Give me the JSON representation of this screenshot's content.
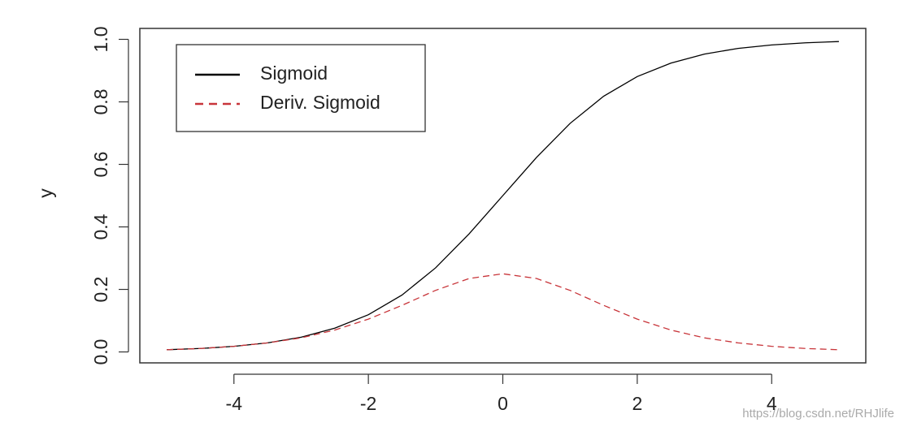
{
  "chart_data": {
    "type": "line",
    "y_label": "y",
    "x": [
      -5,
      -4.5,
      -4,
      -3.5,
      -3,
      -2.5,
      -2,
      -1.5,
      -1,
      -0.5,
      0,
      0.5,
      1,
      1.5,
      2,
      2.5,
      3,
      3.5,
      4,
      4.5,
      5
    ],
    "series": [
      {
        "name": "Sigmoid",
        "color": "#000000",
        "dash": false,
        "values": [
          0.007,
          0.011,
          0.018,
          0.029,
          0.047,
          0.076,
          0.119,
          0.182,
          0.269,
          0.378,
          0.5,
          0.622,
          0.731,
          0.818,
          0.881,
          0.924,
          0.953,
          0.971,
          0.982,
          0.989,
          0.993
        ]
      },
      {
        "name": "Deriv. Sigmoid",
        "color": "#c8353a",
        "dash": true,
        "values": [
          0.007,
          0.011,
          0.018,
          0.029,
          0.045,
          0.07,
          0.105,
          0.149,
          0.197,
          0.235,
          0.25,
          0.235,
          0.197,
          0.149,
          0.105,
          0.07,
          0.045,
          0.029,
          0.018,
          0.011,
          0.007
        ]
      }
    ],
    "xlim": [
      -5.4,
      5.4
    ],
    "xticks": [
      -4,
      -2,
      0,
      2,
      4
    ],
    "ylim": [
      -0.035,
      1.035
    ],
    "yticks": [
      {
        "value": 0,
        "label": "0.0"
      },
      0.2,
      0.4,
      0.6,
      0.8,
      {
        "value": 1,
        "label": "1.0"
      }
    ],
    "legend_position": "upper-left",
    "watermark": "https://blog.csdn.net/RHJlife"
  }
}
